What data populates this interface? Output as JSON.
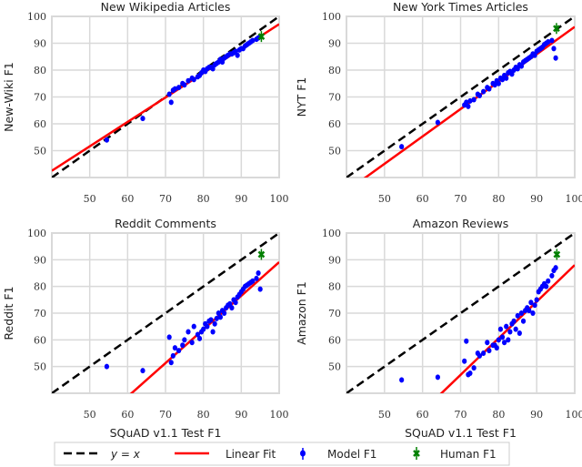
{
  "chart_data": [
    {
      "type": "scatter",
      "title": "New Wikipedia Articles",
      "ylabel": "New-Wiki F1",
      "xlabel": "",
      "xlim": [
        40,
        100
      ],
      "ylim": [
        40,
        100
      ],
      "xticks": [
        50,
        60,
        70,
        80,
        90,
        100
      ],
      "yticks": [
        50,
        60,
        70,
        80,
        90,
        100
      ],
      "grid": true,
      "fit": {
        "slope": 0.91,
        "intercept": 6.1
      },
      "model_y": [
        54,
        62,
        71,
        68,
        72.5,
        73,
        73.5,
        75,
        74.5,
        76,
        77,
        76.5,
        77.5,
        78,
        79,
        80,
        79.5,
        80.5,
        81,
        81,
        80.5,
        82,
        82.5,
        83,
        84,
        83,
        84.5,
        85,
        85.5,
        86,
        86,
        86.5,
        87,
        85.5,
        87.5,
        88,
        88,
        89,
        89.5,
        90,
        90.5,
        91,
        91.5,
        92,
        92.5
      ],
      "human": {
        "x": 95.3,
        "y": 92.5
      }
    },
    {
      "type": "scatter",
      "title": "New York Times Articles",
      "ylabel": "NYT F1",
      "xlabel": "",
      "xlim": [
        40,
        100
      ],
      "ylim": [
        40,
        100
      ],
      "xticks": [
        50,
        60,
        70,
        80,
        90,
        100
      ],
      "yticks": [
        50,
        60,
        70,
        80,
        90,
        100
      ],
      "grid": true,
      "fit": {
        "slope": 1.02,
        "intercept": -5.9
      },
      "model_y": [
        51.5,
        60.5,
        67,
        68,
        66.5,
        68.5,
        69,
        71,
        70.5,
        72,
        73.5,
        73,
        75,
        74.5,
        76,
        75,
        77,
        76.5,
        78,
        77,
        79,
        79.5,
        78.5,
        80,
        81,
        80.5,
        82,
        81.5,
        83,
        83.5,
        84,
        84.5,
        85,
        86,
        85.5,
        87,
        87.5,
        88,
        88.5,
        89.5,
        90,
        90.5,
        91,
        88,
        84.5
      ],
      "human": {
        "x": 95.2,
        "y": 95.5
      }
    },
    {
      "type": "scatter",
      "title": "Reddit Comments",
      "ylabel": "Reddit F1",
      "xlabel": "SQuAD v1.1 Test F1",
      "xlim": [
        40,
        100
      ],
      "ylim": [
        40,
        100
      ],
      "xticks": [
        50,
        60,
        70,
        80,
        90,
        100
      ],
      "yticks": [
        50,
        60,
        70,
        80,
        90,
        100
      ],
      "grid": true,
      "fit": {
        "slope": 1.26,
        "intercept": -36.9
      },
      "model_y": [
        50,
        48.5,
        61,
        51.5,
        54,
        57,
        56,
        58,
        60,
        63,
        59,
        65,
        62,
        60.5,
        63,
        64,
        66,
        65,
        67,
        67.5,
        63,
        66,
        68,
        70,
        68.5,
        71,
        70,
        72,
        73,
        73.5,
        72,
        75,
        74,
        76,
        77,
        78,
        79,
        80,
        80.5,
        81,
        81.5,
        82,
        83,
        85,
        79
      ],
      "human": {
        "x": 95.3,
        "y": 92
      }
    },
    {
      "type": "scatter",
      "title": "Amazon Reviews",
      "ylabel": "Amazon F1",
      "xlabel": "SQuAD v1.1 Test F1",
      "xlim": [
        40,
        100
      ],
      "ylim": [
        40,
        100
      ],
      "xticks": [
        50,
        60,
        70,
        80,
        90,
        100
      ],
      "yticks": [
        50,
        60,
        70,
        80,
        90,
        100
      ],
      "grid": true,
      "fit": {
        "slope": 1.37,
        "intercept": -49
      },
      "model_y": [
        45,
        46,
        52,
        59.5,
        47,
        47.5,
        49.5,
        55,
        54,
        55,
        59,
        56,
        58,
        58,
        57,
        60,
        64,
        61,
        59,
        65,
        60,
        63,
        66,
        67,
        64,
        69,
        62.5,
        70,
        67,
        71,
        72,
        71,
        74,
        70,
        73,
        75,
        78,
        79,
        80,
        81,
        80,
        82,
        84,
        86,
        87
      ],
      "human": {
        "x": 95.3,
        "y": 92
      }
    }
  ],
  "model_x": [
    54.5,
    64,
    71,
    71.5,
    72,
    72.5,
    73.5,
    74.5,
    75,
    76,
    77,
    77.5,
    78.5,
    79,
    79.5,
    80,
    80.5,
    81,
    81.5,
    82,
    82.5,
    83,
    83.5,
    84,
    84.5,
    85,
    85.5,
    86,
    86.5,
    87,
    87.5,
    88,
    88.5,
    89,
    89.5,
    90,
    90.5,
    91,
    91.5,
    92,
    92.5,
    93,
    94,
    94.5,
    95
  ],
  "legend": {
    "identity": "y = x",
    "fit": "Linear Fit",
    "model": "Model F1",
    "human": "Human F1",
    "placement": "bottom"
  },
  "colors": {
    "identity": "#000000",
    "fit": "#ff0000",
    "model": "#0000ff",
    "human": "#008000",
    "grid": "#d9d9d9"
  }
}
